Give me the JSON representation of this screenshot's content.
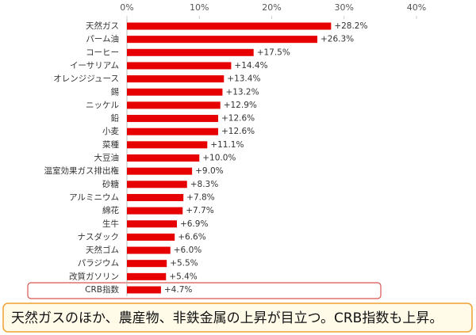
{
  "chart_data": {
    "type": "bar",
    "orientation": "horizontal",
    "categories": [
      "天然ガス",
      "パーム油",
      "コーヒー",
      "イーサリアム",
      "オレンジジュース",
      "錫",
      "ニッケル",
      "鉛",
      "小麦",
      "菜種",
      "大豆油",
      "温室効果ガス排出権",
      "砂糖",
      "アルミニウム",
      "綿花",
      "生牛",
      "ナスダック",
      "天然ゴム",
      "パラジウム",
      "改質ガソリン",
      "CRB指数"
    ],
    "values": [
      28.2,
      26.3,
      17.5,
      14.4,
      13.4,
      13.2,
      12.9,
      12.6,
      12.6,
      11.1,
      10.0,
      9.0,
      8.3,
      7.8,
      7.7,
      6.9,
      6.6,
      6.0,
      5.5,
      5.4,
      4.7
    ],
    "value_labels": [
      "+28.2%",
      "+26.3%",
      "+17.5%",
      "+14.4%",
      "+13.4%",
      "+13.2%",
      "+12.9%",
      "+12.6%",
      "+12.6%",
      "+11.1%",
      "+10.0%",
      "+9.0%",
      "+8.3%",
      "+7.8%",
      "+7.7%",
      "+6.9%",
      "+6.6%",
      "+6.0%",
      "+5.5%",
      "+5.4%",
      "+4.7%"
    ],
    "color": "#e60000",
    "xlim": [
      0,
      40
    ],
    "xticks": [
      {
        "value": 0,
        "label": "0%"
      },
      {
        "value": 10,
        "label": "10%"
      },
      {
        "value": 20,
        "label": "20%"
      },
      {
        "value": 30,
        "label": "30%"
      },
      {
        "value": 40,
        "label": "40%"
      }
    ],
    "grid": false,
    "annotation": "天然ガスのほか、農産物、非鉄金属の上昇が目立つ。CRB指数も上昇。"
  }
}
